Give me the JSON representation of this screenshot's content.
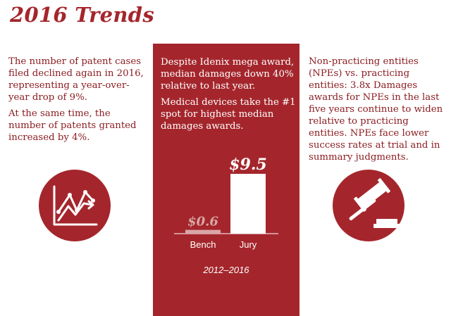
{
  "title": "2016 Trends",
  "left": {
    "p1": "The number of patent cases filed declined again in 2016, representing a year-over-year drop of 9%.",
    "p2": "At the same time, the number of patents granted increased by 4%."
  },
  "center": {
    "p1": "Despite Idenix mega award, median damages down 40% relative to last year.",
    "p2": "Medical devices take the #1 spot for highest median damages awards."
  },
  "right": {
    "p1": "Non-practicing entities (NPEs) vs. practicing entities: 3.8x Damages awards for NPEs in the last five years continue to widen relative to practicing entities. NPEs face lower success rates at trial and in summary judgments."
  },
  "icons": {
    "left": "trend-chart-icon",
    "right": "gavel-icon"
  },
  "colors": {
    "brand": "#a4262c",
    "bench_bar": "#d9a6a6",
    "jury_bar": "#ffffff"
  },
  "chart_data": {
    "type": "bar",
    "categories": [
      "Bench",
      "Jury"
    ],
    "values": [
      0.6,
      9.5
    ],
    "value_labels": [
      "$0.6",
      "$9.5"
    ],
    "caption": "2012–2016",
    "ylim": [
      0,
      9.5
    ]
  }
}
